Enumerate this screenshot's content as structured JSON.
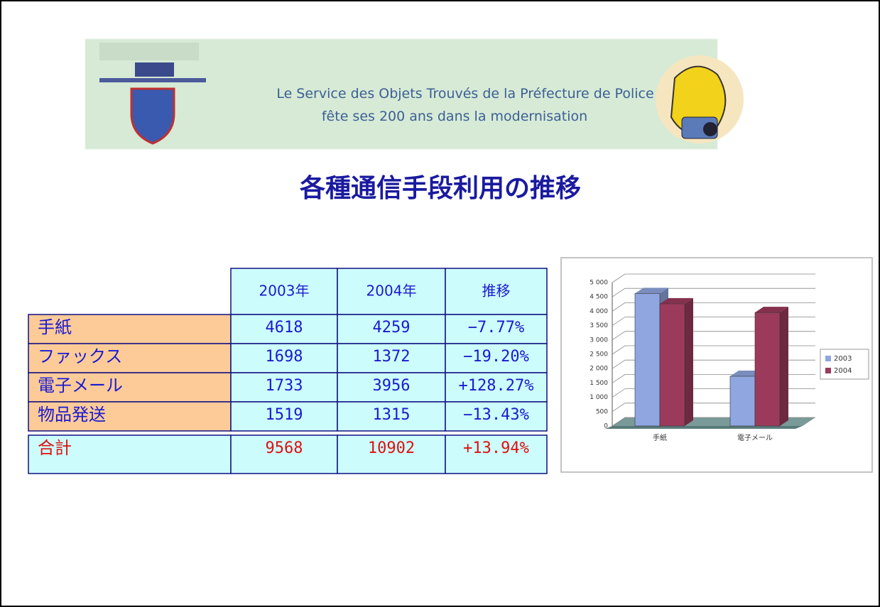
{
  "banner": {
    "line1": "Le Service des Objets Trouvés de la Préfecture de Police",
    "line2": "fête ses 200 ans dans la modernisation"
  },
  "title": "各種通信手段利用の推移",
  "table": {
    "header": [
      "2003年",
      "2004年",
      "推移"
    ],
    "rows": [
      [
        "手紙",
        4618,
        4259,
        "−7.77%"
      ],
      [
        "ファックス",
        1698,
        1372,
        "−19.20%"
      ],
      [
        "電子メール",
        1733,
        3956,
        "+128.27%"
      ],
      [
        "物品発送",
        1519,
        1315,
        "−13.43%"
      ]
    ],
    "total": [
      "合計",
      9568,
      10902,
      "+13.94%"
    ]
  },
  "chart_data": {
    "type": "bar",
    "categories": [
      "手紙",
      "電子メール"
    ],
    "series": [
      {
        "name": "2003",
        "color": "#8fa6e0",
        "values": [
          4618,
          1733
        ]
      },
      {
        "name": "2004",
        "color": "#9c3a5c",
        "values": [
          4259,
          3956
        ]
      }
    ],
    "ylim": [
      0,
      5000
    ],
    "yticks": [
      0,
      500,
      {
        "value": 1000,
        "label": "1 000"
      },
      {
        "value": 1500,
        "label": "1 500"
      },
      {
        "value": 2000,
        "label": "2 000"
      },
      {
        "value": 2500,
        "label": "2 500"
      },
      {
        "value": 3000,
        "label": "3 000"
      },
      {
        "value": 3500,
        "label": "3 500"
      },
      {
        "value": 4000,
        "label": "4 000"
      },
      {
        "value": 4500,
        "label": "4 500"
      },
      {
        "value": 5000,
        "label": "5 000"
      }
    ],
    "grid": true,
    "legend": "right"
  }
}
